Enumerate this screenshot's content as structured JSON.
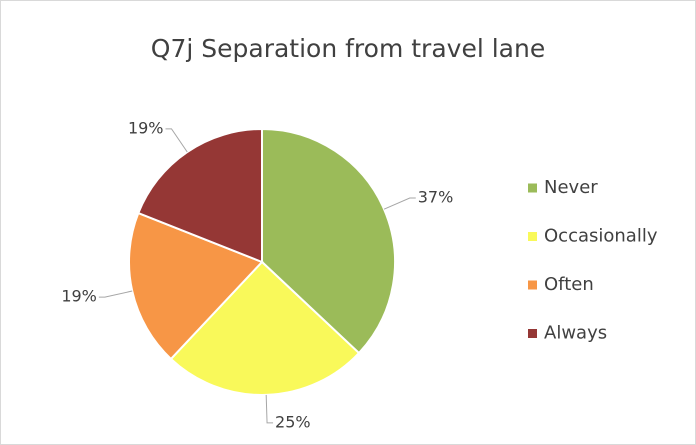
{
  "chart_data": {
    "type": "pie",
    "title": "Q7j Separation from travel lane",
    "categories": [
      "Never",
      "Occasionally",
      "Often",
      "Always"
    ],
    "values": [
      37,
      25,
      19,
      19
    ],
    "value_labels": [
      "37%",
      "25%",
      "19%",
      "19%"
    ],
    "colors": [
      "#9bbb59",
      "#f9f95a",
      "#f79646",
      "#953735"
    ],
    "legend": "right"
  }
}
